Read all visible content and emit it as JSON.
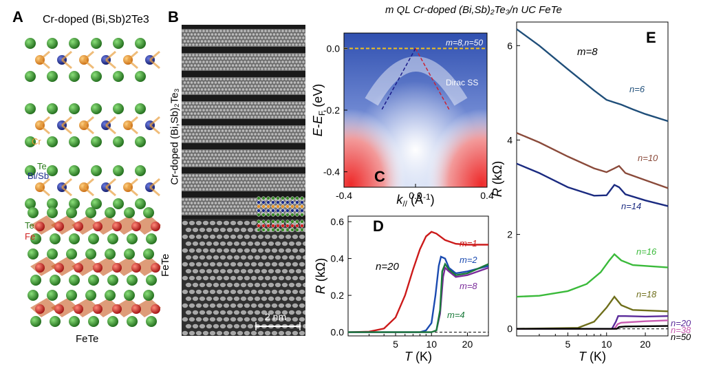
{
  "figure_title": "m QL Cr-doped (Bi,Sb)₂Te₃/n UC FeTe",
  "panels": {
    "A": {
      "letter": "A",
      "top_label": "Cr-doped (Bi,Sb)2Te3",
      "bottom_label": "FeTe",
      "species": {
        "cr": "Cr",
        "te_upper": "Te",
        "bisb": "Bi/Sb",
        "te_lower": "Te",
        "fe": "Fe"
      },
      "colors": {
        "te": "#3a8a2a",
        "bisb": "#1a2a8a",
        "cr": "#e8962a",
        "fe": "#d02020"
      }
    },
    "B": {
      "letter": "B",
      "upper_label": "Cr-doped (Bi,Sb)₂Te₃",
      "lower_label": "FeTe",
      "scale_bar": "2 nm"
    },
    "C": {
      "letter": "C",
      "inset_label": "m=8,n=50",
      "band_label": "Dirac SS",
      "ylabel": "E-E_F (eV)",
      "xlabel": "k// (Å⁻¹)"
    },
    "D": {
      "letter": "D",
      "n_label": "n=20"
    },
    "E": {
      "letter": "E",
      "m_label": "m=8"
    }
  },
  "chart_data": [
    {
      "panel": "C",
      "type": "heatmap",
      "xlabel": "k// (Å⁻¹)",
      "ylabel": "E-E_F (eV)",
      "xlim": [
        -0.4,
        0.4
      ],
      "ylim": [
        -0.45,
        0.05
      ],
      "xticks": [
        "-0.4",
        "0.0",
        "0.4"
      ],
      "yticks": [
        "0.0",
        "-0.2",
        "-0.4"
      ],
      "fermi_level": 0.0,
      "dirac_point": {
        "k": 0.0,
        "E": 0.0
      },
      "dirac_branches": [
        {
          "from": [
            0.0,
            0.0
          ],
          "to": [
            -0.19,
            -0.2
          ],
          "color": "#1a1a8a"
        },
        {
          "from": [
            0.0,
            0.0
          ],
          "to": [
            0.19,
            -0.2
          ],
          "color": "#cc2233"
        }
      ]
    },
    {
      "panel": "D",
      "type": "line",
      "xlabel": "T (K)",
      "ylabel": "R (kΩ)",
      "xscale": "log",
      "xlim": [
        2,
        30
      ],
      "ylim": [
        -0.02,
        0.63
      ],
      "xticks": [
        5,
        10,
        20
      ],
      "yticks": [
        0.0,
        0.2,
        0.4,
        0.6
      ],
      "baseline": 0.0,
      "series": [
        {
          "name": "m=1",
          "color": "#cc1a1a",
          "points": [
            [
              2,
              0
            ],
            [
              3,
              0.003
            ],
            [
              4,
              0.02
            ],
            [
              5,
              0.08
            ],
            [
              6,
              0.2
            ],
            [
              7,
              0.34
            ],
            [
              8,
              0.45
            ],
            [
              9,
              0.52
            ],
            [
              10,
              0.545
            ],
            [
              11,
              0.535
            ],
            [
              13,
              0.5
            ],
            [
              16,
              0.48
            ],
            [
              20,
              0.475
            ],
            [
              30,
              0.475
            ]
          ]
        },
        {
          "name": "m=2",
          "color": "#1a4ab0",
          "points": [
            [
              2,
              0
            ],
            [
              8,
              0
            ],
            [
              9,
              0.01
            ],
            [
              10,
              0.05
            ],
            [
              10.8,
              0.2
            ],
            [
              11.5,
              0.36
            ],
            [
              12,
              0.41
            ],
            [
              13,
              0.4
            ],
            [
              14,
              0.35
            ],
            [
              16,
              0.32
            ],
            [
              20,
              0.33
            ],
            [
              30,
              0.36
            ]
          ]
        },
        {
          "name": "m=8",
          "color": "#7a2a9a",
          "points": [
            [
              2,
              0
            ],
            [
              10,
              0
            ],
            [
              11,
              0.01
            ],
            [
              11.8,
              0.1
            ],
            [
              12.5,
              0.3
            ],
            [
              13,
              0.35
            ],
            [
              14,
              0.33
            ],
            [
              16,
              0.3
            ],
            [
              20,
              0.31
            ],
            [
              30,
              0.35
            ]
          ]
        },
        {
          "name": "m=4",
          "color": "#1a7a3a",
          "points": [
            [
              2,
              0
            ],
            [
              10,
              0
            ],
            [
              11,
              0.01
            ],
            [
              11.8,
              0.12
            ],
            [
              12.3,
              0.33
            ],
            [
              13,
              0.37
            ],
            [
              14,
              0.34
            ],
            [
              16,
              0.31
            ],
            [
              20,
              0.32
            ],
            [
              30,
              0.37
            ]
          ]
        }
      ]
    },
    {
      "panel": "E",
      "type": "line",
      "xlabel": "T (K)",
      "ylabel": "R (kΩ)",
      "xscale": "log",
      "xlim": [
        2,
        30
      ],
      "ylim": [
        -0.15,
        6.5
      ],
      "xticks": [
        5,
        10,
        20
      ],
      "yticks": [
        0,
        2,
        4,
        6
      ],
      "baseline": 0.0,
      "series": [
        {
          "name": "n=6",
          "color": "#1f4e79",
          "points": [
            [
              2,
              6.35
            ],
            [
              3,
              6.0
            ],
            [
              5,
              5.5
            ],
            [
              8,
              5.05
            ],
            [
              10,
              4.85
            ],
            [
              13,
              4.75
            ],
            [
              16,
              4.65
            ],
            [
              20,
              4.55
            ],
            [
              30,
              4.4
            ]
          ]
        },
        {
          "name": "n=10",
          "color": "#8a4a3a",
          "points": [
            [
              2,
              4.15
            ],
            [
              3,
              3.95
            ],
            [
              5,
              3.65
            ],
            [
              8,
              3.4
            ],
            [
              10,
              3.32
            ],
            [
              11.5,
              3.4
            ],
            [
              12.5,
              3.45
            ],
            [
              14,
              3.3
            ],
            [
              20,
              3.15
            ],
            [
              30,
              2.98
            ]
          ]
        },
        {
          "name": "n=14",
          "color": "#1a2a80",
          "points": [
            [
              2,
              3.5
            ],
            [
              3,
              3.3
            ],
            [
              5,
              3.0
            ],
            [
              8,
              2.82
            ],
            [
              10,
              2.83
            ],
            [
              11.5,
              3.05
            ],
            [
              12.5,
              3.0
            ],
            [
              14,
              2.85
            ],
            [
              20,
              2.72
            ],
            [
              30,
              2.6
            ]
          ]
        },
        {
          "name": "n=16",
          "color": "#3aba3a",
          "points": [
            [
              2,
              0.68
            ],
            [
              3,
              0.7
            ],
            [
              5,
              0.8
            ],
            [
              7,
              0.95
            ],
            [
              9,
              1.2
            ],
            [
              10.5,
              1.45
            ],
            [
              11.5,
              1.58
            ],
            [
              13,
              1.45
            ],
            [
              16,
              1.35
            ],
            [
              30,
              1.3
            ]
          ]
        },
        {
          "name": "n=18",
          "color": "#6e6e1a",
          "points": [
            [
              2,
              0
            ],
            [
              6,
              0.02
            ],
            [
              8,
              0.15
            ],
            [
              10,
              0.45
            ],
            [
              11.5,
              0.68
            ],
            [
              13,
              0.5
            ],
            [
              16,
              0.4
            ],
            [
              30,
              0.37
            ]
          ]
        },
        {
          "name": "n=20",
          "color": "#5a2a9a",
          "points": [
            [
              2,
              0
            ],
            [
              11,
              0
            ],
            [
              11.8,
              0.15
            ],
            [
              12.3,
              0.27
            ],
            [
              14,
              0.27
            ],
            [
              20,
              0.26
            ],
            [
              30,
              0.27
            ]
          ]
        },
        {
          "name": "n=38",
          "color": "#c85ab0",
          "points": [
            [
              2,
              0
            ],
            [
              11.5,
              0
            ],
            [
              12.2,
              0.1
            ],
            [
              13,
              0.13
            ],
            [
              20,
              0.16
            ],
            [
              30,
              0.18
            ]
          ]
        },
        {
          "name": "n=50",
          "color": "#000000",
          "points": [
            [
              2,
              0
            ],
            [
              12,
              0
            ],
            [
              12.5,
              0.04
            ],
            [
              14,
              0.05
            ],
            [
              30,
              0.06
            ]
          ]
        }
      ]
    }
  ]
}
